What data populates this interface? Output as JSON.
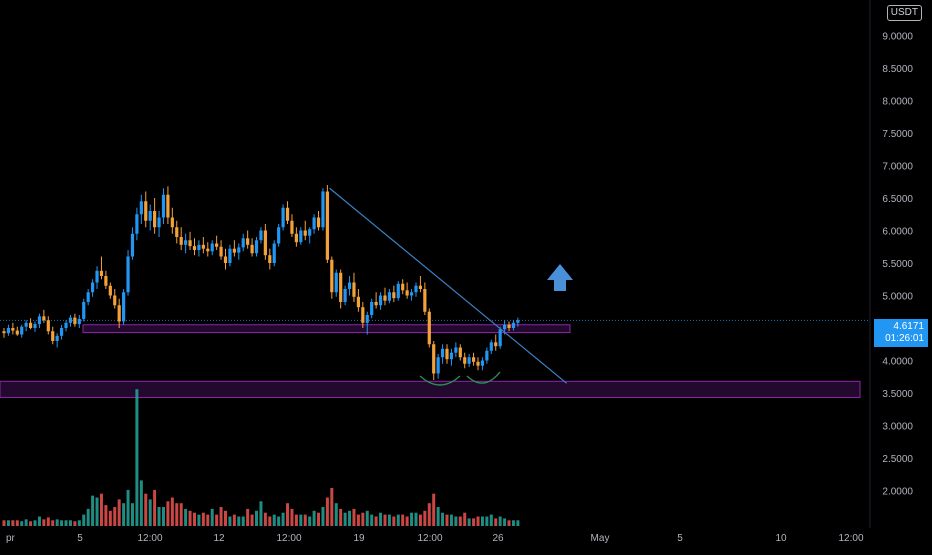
{
  "currency_label": "USDT",
  "last_price": "4.6171",
  "countdown": "01:26:01",
  "colors": {
    "up": "#2196f3",
    "down": "#f5a13a",
    "vol_up": "#26a69a",
    "vol_down": "#ef5350",
    "zone": "#8e24aa",
    "trend": "#3b82c4",
    "arrow": "#4a90d9",
    "curve": "#2e8b57",
    "axis_text": "#b2b5be"
  },
  "chart_data": {
    "type": "candlestick",
    "title": "",
    "y_ticks": [
      "2.0000",
      "2.5000",
      "3.0000",
      "3.5000",
      "4.0000",
      "4.5000",
      "5.0000",
      "5.5000",
      "6.0000",
      "6.5000",
      "7.0000",
      "7.5000",
      "8.0000",
      "8.5000",
      "9.0000"
    ],
    "ylim": [
      1.75,
      9.1
    ],
    "x_ticks": [
      "pr",
      "5",
      "12:00",
      "12",
      "12:00",
      "19",
      "12:00",
      "26",
      "May",
      "5",
      "10",
      "12:00"
    ],
    "candles": [
      [
        4.45,
        4.5,
        4.35,
        4.42
      ],
      [
        4.42,
        4.55,
        4.38,
        4.5
      ],
      [
        4.5,
        4.58,
        4.4,
        4.46
      ],
      [
        4.46,
        4.52,
        4.38,
        4.4
      ],
      [
        4.4,
        4.55,
        4.35,
        4.52
      ],
      [
        4.52,
        4.62,
        4.45,
        4.58
      ],
      [
        4.58,
        4.65,
        4.48,
        4.5
      ],
      [
        4.5,
        4.6,
        4.44,
        4.56
      ],
      [
        4.56,
        4.72,
        4.5,
        4.68
      ],
      [
        4.68,
        4.78,
        4.58,
        4.62
      ],
      [
        4.62,
        4.68,
        4.4,
        4.45
      ],
      [
        4.45,
        4.52,
        4.25,
        4.3
      ],
      [
        4.3,
        4.42,
        4.2,
        4.38
      ],
      [
        4.38,
        4.55,
        4.32,
        4.5
      ],
      [
        4.5,
        4.62,
        4.45,
        4.58
      ],
      [
        4.58,
        4.7,
        4.52,
        4.66
      ],
      [
        4.66,
        4.72,
        4.52,
        4.56
      ],
      [
        4.56,
        4.7,
        4.5,
        4.64
      ],
      [
        4.64,
        4.95,
        4.6,
        4.9
      ],
      [
        4.9,
        5.1,
        4.85,
        5.05
      ],
      [
        5.05,
        5.25,
        4.98,
        5.2
      ],
      [
        5.2,
        5.45,
        5.1,
        5.38
      ],
      [
        5.38,
        5.6,
        5.25,
        5.3
      ],
      [
        5.3,
        5.38,
        5.1,
        5.15
      ],
      [
        5.15,
        5.2,
        4.95,
        5.0
      ],
      [
        5.0,
        5.1,
        4.8,
        4.85
      ],
      [
        4.85,
        4.95,
        4.5,
        4.6
      ],
      [
        4.6,
        5.1,
        4.55,
        5.05
      ],
      [
        5.05,
        5.7,
        5.0,
        5.6
      ],
      [
        5.6,
        6.05,
        5.55,
        5.95
      ],
      [
        5.95,
        6.35,
        5.85,
        6.25
      ],
      [
        6.25,
        6.55,
        6.1,
        6.45
      ],
      [
        6.45,
        6.6,
        6.05,
        6.15
      ],
      [
        6.15,
        6.4,
        6.0,
        6.3
      ],
      [
        6.3,
        6.5,
        5.95,
        6.05
      ],
      [
        6.05,
        6.3,
        5.9,
        6.2
      ],
      [
        6.2,
        6.65,
        6.1,
        6.55
      ],
      [
        6.55,
        6.68,
        6.1,
        6.2
      ],
      [
        6.2,
        6.35,
        5.95,
        6.05
      ],
      [
        6.05,
        6.15,
        5.8,
        5.9
      ],
      [
        5.9,
        6.05,
        5.7,
        5.78
      ],
      [
        5.78,
        5.95,
        5.65,
        5.85
      ],
      [
        5.85,
        5.98,
        5.7,
        5.76
      ],
      [
        5.76,
        5.88,
        5.62,
        5.7
      ],
      [
        5.7,
        5.85,
        5.6,
        5.78
      ],
      [
        5.78,
        5.9,
        5.65,
        5.72
      ],
      [
        5.72,
        5.82,
        5.6,
        5.68
      ],
      [
        5.68,
        5.85,
        5.62,
        5.8
      ],
      [
        5.8,
        5.92,
        5.7,
        5.75
      ],
      [
        5.75,
        5.85,
        5.55,
        5.6
      ],
      [
        5.6,
        5.72,
        5.4,
        5.5
      ],
      [
        5.5,
        5.78,
        5.45,
        5.72
      ],
      [
        5.72,
        5.85,
        5.6,
        5.66
      ],
      [
        5.66,
        5.8,
        5.55,
        5.74
      ],
      [
        5.74,
        5.95,
        5.68,
        5.88
      ],
      [
        5.88,
        6.0,
        5.72,
        5.78
      ],
      [
        5.78,
        5.88,
        5.6,
        5.65
      ],
      [
        5.65,
        5.9,
        5.6,
        5.85
      ],
      [
        5.85,
        6.05,
        5.8,
        6.0
      ],
      [
        6.0,
        6.1,
        5.55,
        5.62
      ],
      [
        5.62,
        5.72,
        5.4,
        5.5
      ],
      [
        5.5,
        5.85,
        5.45,
        5.8
      ],
      [
        5.8,
        6.1,
        5.75,
        6.05
      ],
      [
        6.05,
        6.4,
        6.0,
        6.35
      ],
      [
        6.35,
        6.45,
        6.1,
        6.15
      ],
      [
        6.15,
        6.25,
        5.9,
        5.95
      ],
      [
        5.95,
        6.05,
        5.75,
        5.82
      ],
      [
        5.82,
        6.05,
        5.78,
        6.0
      ],
      [
        6.0,
        6.15,
        5.85,
        5.92
      ],
      [
        5.92,
        6.05,
        5.8,
        6.02
      ],
      [
        6.02,
        6.25,
        5.95,
        6.2
      ],
      [
        6.2,
        6.3,
        6.0,
        6.05
      ],
      [
        6.05,
        6.65,
        6.0,
        6.6
      ],
      [
        6.6,
        6.7,
        5.5,
        5.55
      ],
      [
        5.55,
        5.6,
        4.95,
        5.05
      ],
      [
        5.05,
        5.4,
        4.98,
        5.35
      ],
      [
        5.35,
        5.4,
        4.8,
        4.9
      ],
      [
        4.9,
        5.15,
        4.85,
        5.1
      ],
      [
        5.1,
        5.3,
        5.0,
        5.2
      ],
      [
        5.2,
        5.35,
        4.9,
        4.98
      ],
      [
        4.98,
        5.1,
        4.75,
        4.82
      ],
      [
        4.82,
        4.9,
        4.5,
        4.58
      ],
      [
        4.58,
        4.75,
        4.4,
        4.7
      ],
      [
        4.7,
        4.95,
        4.65,
        4.9
      ],
      [
        4.9,
        5.05,
        4.8,
        4.85
      ],
      [
        4.85,
        5.05,
        4.78,
        5.0
      ],
      [
        5.0,
        5.12,
        4.85,
        4.92
      ],
      [
        4.92,
        5.1,
        4.88,
        5.05
      ],
      [
        5.05,
        5.15,
        4.9,
        4.96
      ],
      [
        4.96,
        5.22,
        4.92,
        5.18
      ],
      [
        5.18,
        5.25,
        5.02,
        5.08
      ],
      [
        5.08,
        5.2,
        4.95,
        5.0
      ],
      [
        5.0,
        5.1,
        4.92,
        5.05
      ],
      [
        5.05,
        5.2,
        4.98,
        5.15
      ],
      [
        5.15,
        5.3,
        5.05,
        5.1
      ],
      [
        5.1,
        5.2,
        4.7,
        4.75
      ],
      [
        4.75,
        4.8,
        4.2,
        4.25
      ],
      [
        4.25,
        4.3,
        3.7,
        3.8
      ],
      [
        3.8,
        4.1,
        3.72,
        4.05
      ],
      [
        4.05,
        4.25,
        3.95,
        4.18
      ],
      [
        4.18,
        4.25,
        3.95,
        4.02
      ],
      [
        4.02,
        4.18,
        3.92,
        4.12
      ],
      [
        4.12,
        4.28,
        4.05,
        4.2
      ],
      [
        4.2,
        4.25,
        4.0,
        4.05
      ],
      [
        4.05,
        4.12,
        3.88,
        3.95
      ],
      [
        3.95,
        4.1,
        3.9,
        4.05
      ],
      [
        4.05,
        4.12,
        3.92,
        3.98
      ],
      [
        3.98,
        4.05,
        3.85,
        3.92
      ],
      [
        3.92,
        4.05,
        3.85,
        4.0
      ],
      [
        4.0,
        4.2,
        3.95,
        4.15
      ],
      [
        4.15,
        4.32,
        4.1,
        4.28
      ],
      [
        4.28,
        4.4,
        4.15,
        4.22
      ],
      [
        4.22,
        4.52,
        4.18,
        4.48
      ],
      [
        4.48,
        4.62,
        4.4,
        4.55
      ],
      [
        4.55,
        4.6,
        4.45,
        4.5
      ],
      [
        4.5,
        4.62,
        4.46,
        4.58
      ],
      [
        4.58,
        4.66,
        4.52,
        4.62
      ]
    ],
    "volumes": [
      0.3,
      0.3,
      0.3,
      0.3,
      0.25,
      0.35,
      0.25,
      0.3,
      0.5,
      0.35,
      0.45,
      0.3,
      0.35,
      0.3,
      0.3,
      0.3,
      0.25,
      0.3,
      0.6,
      0.9,
      1.6,
      1.5,
      1.7,
      1.1,
      0.8,
      1.0,
      1.4,
      1.2,
      1.9,
      1.2,
      7.2,
      2.4,
      1.7,
      1.4,
      1.9,
      1.0,
      1.0,
      1.3,
      1.5,
      1.2,
      1.2,
      0.9,
      0.8,
      0.7,
      0.6,
      0.7,
      0.6,
      0.9,
      0.6,
      1.0,
      0.8,
      0.5,
      0.6,
      0.5,
      0.5,
      0.9,
      0.6,
      0.8,
      1.3,
      0.7,
      0.5,
      0.6,
      0.5,
      0.7,
      1.2,
      0.9,
      0.6,
      0.6,
      0.6,
      0.5,
      0.8,
      0.7,
      1.0,
      1.5,
      2.0,
      1.2,
      0.9,
      0.7,
      0.8,
      0.9,
      0.6,
      0.7,
      0.8,
      0.6,
      0.5,
      0.7,
      0.6,
      0.6,
      0.5,
      0.6,
      0.6,
      0.5,
      0.7,
      0.7,
      0.6,
      0.8,
      1.2,
      1.7,
      1.0,
      0.7,
      0.6,
      0.6,
      0.5,
      0.5,
      0.7,
      0.4,
      0.4,
      0.5,
      0.5,
      0.5,
      0.6,
      0.4,
      0.5,
      0.4,
      0.3,
      0.3,
      0.3
    ],
    "zones": [
      {
        "y1": 4.55,
        "y2": 4.43,
        "t1": 0.0,
        "t2": 1.0
      },
      {
        "y1": 3.68,
        "y2": 3.43,
        "t1": 0.0,
        "t2": 1.0
      }
    ],
    "trendline": {
      "p1": [
        73.5,
        6.65
      ],
      "p2": [
        127,
        3.65
      ]
    }
  }
}
